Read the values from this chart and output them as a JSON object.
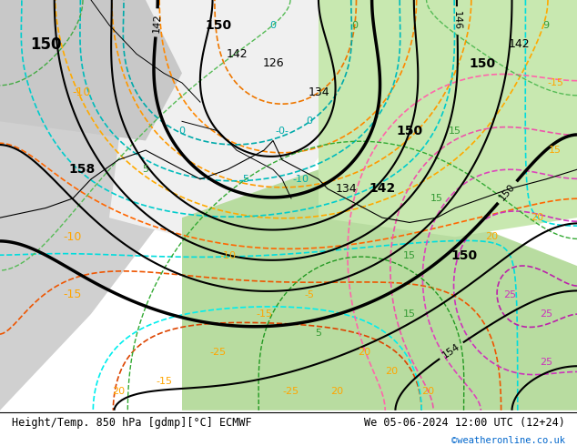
{
  "title_left": "Height/Temp. 850 hPa [gdmp][°C] ECMWF",
  "title_right": "We 05-06-2024 12:00 UTC (12+24)",
  "credit": "©weatheronline.co.uk",
  "bg_color_left": "#e8e8e8",
  "bg_color_center": "#ffffff",
  "bg_color_right": "#d4edcc",
  "bg_color_green_light": "#c8e6b0",
  "fig_width": 6.34,
  "fig_height": 4.9,
  "dpi": 100,
  "bottom_bar_height": 0.08
}
